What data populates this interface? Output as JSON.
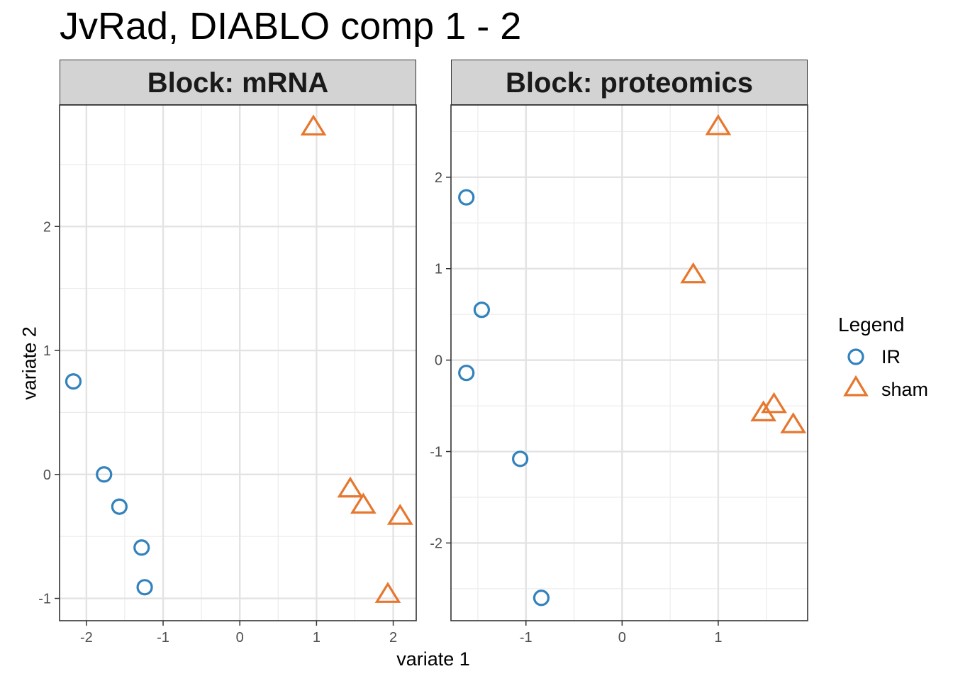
{
  "chart_data": [
    {
      "type": "scatter",
      "title": "JvRad, DIABLO comp 1 - 2",
      "panel_title": "Block: mRNA",
      "xlabel": "variate 1",
      "ylabel": "variate 2",
      "xlim": [
        -2.35,
        2.3
      ],
      "ylim": [
        -1.18,
        2.98
      ],
      "xticks": [
        -2,
        -1,
        0,
        1,
        2
      ],
      "yticks": [
        -1,
        0,
        1,
        2
      ],
      "xtick_labels": [
        "-2",
        "-1",
        "0",
        "1",
        "2"
      ],
      "ytick_labels": [
        "-1",
        "0",
        "1",
        "2"
      ],
      "grid": true,
      "series": [
        {
          "name": "IR",
          "marker": "circle",
          "color": "#3182bd",
          "x": [
            -2.17,
            -1.77,
            -1.57,
            -1.28,
            -1.24
          ],
          "y": [
            0.75,
            0.0,
            -0.26,
            -0.59,
            -0.91
          ]
        },
        {
          "name": "sham",
          "marker": "triangle",
          "color": "#e6772e",
          "x": [
            0.96,
            1.44,
            1.61,
            2.09,
            1.93
          ],
          "y": [
            2.8,
            -0.12,
            -0.25,
            -0.34,
            -0.97
          ]
        }
      ]
    },
    {
      "type": "scatter",
      "panel_title": "Block: proteomics",
      "xlabel": "variate 1",
      "ylabel": "variate 2",
      "xlim": [
        -1.78,
        1.93
      ],
      "ylim": [
        -2.85,
        2.79
      ],
      "xticks": [
        -1,
        0,
        1
      ],
      "yticks": [
        -2,
        -1,
        0,
        1,
        2
      ],
      "xtick_labels": [
        "-1",
        "0",
        "1"
      ],
      "ytick_labels": [
        "-2",
        "-1",
        "0",
        "1",
        "2"
      ],
      "grid": true,
      "series": [
        {
          "name": "IR",
          "marker": "circle",
          "color": "#3182bd",
          "x": [
            -1.62,
            -1.46,
            -1.62,
            -1.06,
            -0.84
          ],
          "y": [
            1.78,
            0.55,
            -0.14,
            -1.08,
            -2.6
          ]
        },
        {
          "name": "sham",
          "marker": "triangle",
          "color": "#e6772e",
          "x": [
            1.0,
            0.74,
            1.47,
            1.58,
            1.78
          ],
          "y": [
            2.55,
            0.93,
            -0.58,
            -0.49,
            -0.71
          ]
        }
      ]
    }
  ],
  "legend": {
    "title": "Legend",
    "placement": "right",
    "items": [
      {
        "label": "IR",
        "marker": "circle",
        "color": "#3182bd"
      },
      {
        "label": "sham",
        "marker": "triangle",
        "color": "#e6772e"
      }
    ]
  }
}
